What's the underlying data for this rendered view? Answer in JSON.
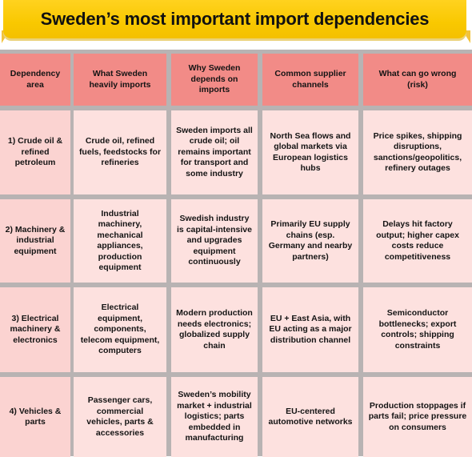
{
  "title": "Sweden’s most important import dependencies",
  "colors": {
    "banner": "#f9c800",
    "header": "#f28b87",
    "cell": "#fde1df",
    "grid": "#b8b3b3"
  },
  "headers": [
    "Dependency area",
    "What Sweden heavily imports",
    "Why Sweden depends on imports",
    "Common supplier channels",
    "What can go wrong (risk)"
  ],
  "rows": [
    [
      "1) Crude oil & refined petroleum",
      "Crude oil, refined fuels, feedstocks for refineries",
      "Sweden imports all crude oil; oil remains important for transport and some industry",
      "North Sea flows and global markets via European logistics hubs",
      "Price spikes, shipping disruptions, sanctions/geopolitics, refinery outages"
    ],
    [
      "2) Machinery & industrial equipment",
      "Industrial machinery, mechanical appliances, production equipment",
      "Swedish industry is capital-intensive and upgrades equipment continuously",
      "Primarily EU supply chains (esp. Germany and nearby partners)",
      "Delays hit factory output; higher capex costs reduce competitiveness"
    ],
    [
      "3) Electrical machinery & electronics",
      "Electrical equipment, components, telecom equipment, computers",
      "Modern production needs electronics; globalized supply chain",
      "EU + East Asia, with EU acting as a major distribution channel",
      "Semiconductor bottlenecks; export controls; shipping constraints"
    ],
    [
      "4) Vehicles & parts",
      "Passenger cars, commercial vehicles, parts & accessories",
      "Sweden’s mobility market + industrial logistics; parts embedded in manufacturing",
      "EU-centered automotive networks",
      "Production stoppages if parts fail; price pressure on consumers"
    ]
  ]
}
